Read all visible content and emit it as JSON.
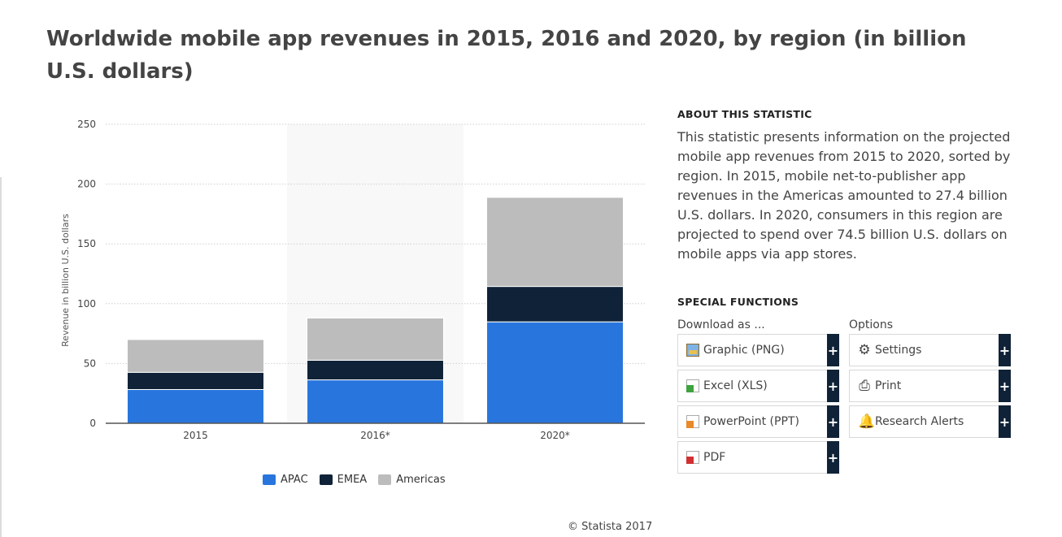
{
  "title": "Worldwide mobile app revenues in 2015, 2016 and 2020, by region (in billion U.S. dollars)",
  "chart_data": {
    "type": "bar",
    "stacked": true,
    "categories": [
      "2015",
      "2016*",
      "2020*"
    ],
    "series": [
      {
        "name": "APAC",
        "color": "#2876dd",
        "values": [
          28.2,
          36.3,
          84.8
        ]
      },
      {
        "name": "EMEA",
        "color": "#0f2237",
        "values": [
          14.4,
          16.4,
          29.6
        ]
      },
      {
        "name": "Americas",
        "color": "#bcbcbc",
        "values": [
          27.4,
          35.3,
          74.5
        ]
      }
    ],
    "ylabel": "Revenue in billion U.S. dollars",
    "ylim": [
      0,
      250
    ],
    "yticks": [
      "0",
      "50",
      "100",
      "150",
      "200",
      "250"
    ],
    "grid": true,
    "highlighted_category": "2016*",
    "legend_position": "bottom"
  },
  "copyright": "© Statista 2017",
  "about": {
    "heading": "ABOUT THIS STATISTIC",
    "text": "This statistic presents information on the projected mobile app revenues from 2015 to 2020, sorted by region. In 2015, mobile net-to-publisher app revenues in the Americas amounted to 27.4 billion U.S. dollars. In 2020, consumers in this region are projected to spend over 74.5 billion U.S. dollars on mobile apps via app stores."
  },
  "special": {
    "heading": "SPECIAL FUNCTIONS",
    "download_label": "Download as ...",
    "options_label": "Options",
    "downloads": [
      {
        "label": "Graphic (PNG)",
        "icon": "image-icon"
      },
      {
        "label": "Excel (XLS)",
        "icon": "excel-icon"
      },
      {
        "label": "PowerPoint (PPT)",
        "icon": "powerpoint-icon"
      },
      {
        "label": "PDF",
        "icon": "pdf-icon"
      }
    ],
    "options": [
      {
        "label": "Settings",
        "icon": "gear-icon"
      },
      {
        "label": "Print",
        "icon": "printer-icon"
      },
      {
        "label": "Research Alerts",
        "icon": "bell-icon"
      }
    ],
    "plus": "+"
  }
}
